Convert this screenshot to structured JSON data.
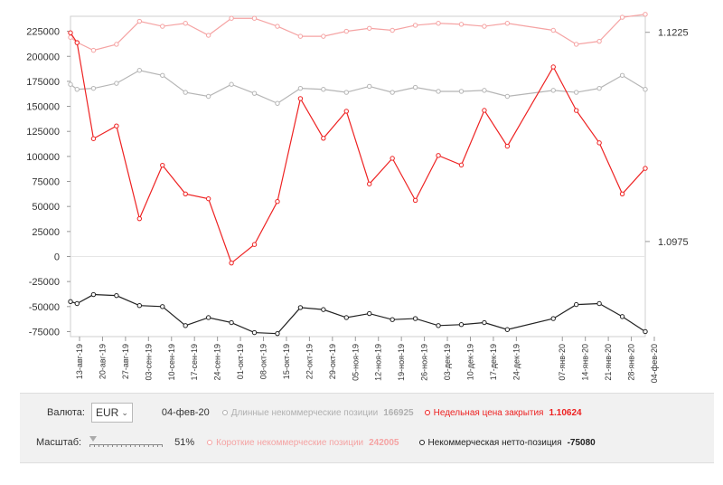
{
  "chart_data": {
    "type": "line",
    "categories": [
      "13-авг-19",
      "20-авг-19",
      "27-авг-19",
      "03-сен-19",
      "10-сен-19",
      "17-сен-19",
      "24-сен-19",
      "01-окт-19",
      "08-окт-19",
      "15-окт-19",
      "22-окт-19",
      "29-окт-19",
      "05-ноя-19",
      "12-ноя-19",
      "19-ноя-19",
      "26-ноя-19",
      "03-дек-19",
      "10-дек-19",
      "17-дек-19",
      "24-дек-19",
      "07-янв-20",
      "14-янв-20",
      "21-янв-20",
      "28-янв-20",
      "04-фев-20"
    ],
    "x_days": [
      0,
      7,
      14,
      21,
      28,
      35,
      42,
      49,
      56,
      63,
      70,
      77,
      84,
      91,
      98,
      105,
      112,
      119,
      126,
      133,
      147,
      154,
      161,
      168,
      175
    ],
    "left_axis": {
      "ylim": [
        -80000,
        240000
      ],
      "ticks": [
        "225000",
        "200000",
        "175000",
        "150000",
        "125000",
        "100000",
        "75000",
        "50000",
        "25000",
        "0",
        "-25000",
        "-50000",
        "-75000"
      ],
      "tick_values": [
        225000,
        200000,
        175000,
        150000,
        125000,
        100000,
        75000,
        50000,
        25000,
        0,
        -25000,
        -50000,
        -75000
      ]
    },
    "right_axis": {
      "ticks": [
        "1.1225",
        "1.0975"
      ],
      "tick_values": [
        1.1225,
        1.0975
      ]
    },
    "grid": "horizontal",
    "series": [
      {
        "name": "Длинные некоммерческие позиции",
        "axis": "left",
        "color": "#b5b5b5",
        "x": [
          0,
          2,
          7,
          14,
          21,
          28,
          35,
          42,
          49,
          56,
          63,
          70,
          77,
          84,
          91,
          98,
          105,
          112,
          119,
          126,
          133,
          147,
          154,
          161,
          168,
          175
        ],
        "values": [
          172000,
          167000,
          168000,
          173000,
          186000,
          181000,
          164000,
          160000,
          172000,
          163000,
          153000,
          168000,
          167000,
          164000,
          170000,
          164000,
          169000,
          165000,
          165000,
          166000,
          160000,
          166000,
          164000,
          168000,
          181000,
          167000
        ]
      },
      {
        "name": "Короткие некоммерческие позиции",
        "axis": "left",
        "color": "#f5a3a3",
        "x": [
          0,
          2,
          7,
          14,
          21,
          28,
          35,
          42,
          49,
          56,
          63,
          70,
          77,
          84,
          91,
          98,
          105,
          112,
          119,
          126,
          133,
          147,
          154,
          161,
          168,
          175
        ],
        "values": [
          219000,
          214000,
          206000,
          212000,
          235000,
          230000,
          233000,
          221000,
          238000,
          238000,
          230000,
          220000,
          220000,
          225000,
          228000,
          226000,
          231000,
          233000,
          232000,
          230000,
          233000,
          226000,
          212000,
          215000,
          239000,
          242000
        ]
      },
      {
        "name": "Некоммерческая нетто-позиция",
        "axis": "left",
        "color": "#222222",
        "x": [
          0,
          2,
          7,
          14,
          21,
          28,
          35,
          42,
          49,
          56,
          63,
          70,
          77,
          84,
          91,
          98,
          105,
          112,
          119,
          126,
          133,
          147,
          154,
          161,
          168,
          175
        ],
        "values": [
          -45000,
          -47000,
          -38000,
          -39000,
          -49000,
          -50000,
          -69000,
          -61000,
          -66000,
          -76000,
          -77000,
          -51000,
          -53000,
          -61000,
          -57000,
          -63000,
          -62000,
          -69000,
          -68000,
          -66000,
          -73000,
          -62000,
          -48000,
          -47000,
          -60000,
          -75000
        ]
      },
      {
        "name": "Недельная цена закрытия",
        "axis": "right",
        "color": "#ee2222",
        "x": [
          0,
          2,
          7,
          14,
          21,
          28,
          35,
          42,
          49,
          56,
          63,
          70,
          77,
          84,
          91,
          98,
          105,
          112,
          119,
          126,
          133,
          147,
          154,
          161,
          168,
          175
        ],
        "values": [
          1.12244,
          1.12126,
          1.10979,
          1.11131,
          1.10023,
          1.10661,
          1.10319,
          1.10261,
          1.09493,
          1.09714,
          1.10228,
          1.11458,
          1.10984,
          1.11307,
          1.10438,
          1.10744,
          1.10242,
          1.10778,
          1.10664,
          1.11317,
          1.10889,
          1.11836,
          1.11316,
          1.10929,
          1.10319,
          1.10624
        ]
      }
    ]
  },
  "controls": {
    "currency_label": "Валюта:",
    "currency_value": "EUR",
    "date": "04-фев-20",
    "scale_label": "Масштаб:",
    "scale_percent": "51%",
    "scale_fraction": 0.51
  },
  "legend": {
    "long": {
      "label": "Длинные некоммерческие позиции",
      "value": "166925",
      "color": "#b0b0b0"
    },
    "close": {
      "label": "Недельная цена закрытия",
      "value": "1.10624",
      "color": "#ee2222"
    },
    "short": {
      "label": "Короткие некоммерческие позиции",
      "value": "242005",
      "color": "#f5a3a3"
    },
    "net": {
      "label": "Некоммерческая нетто-позиция",
      "value": "-75080",
      "color": "#222222"
    }
  }
}
